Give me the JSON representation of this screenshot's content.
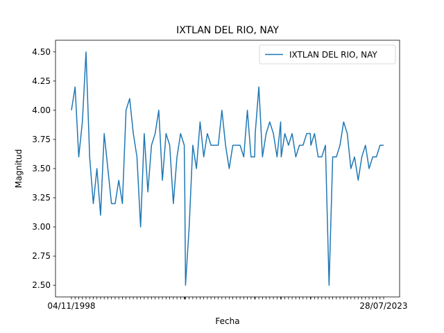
{
  "chart_data": {
    "type": "line",
    "title": "IXTLAN DEL RIO, NAY",
    "xlabel": "Fecha",
    "ylabel": "Magnitud",
    "legend": {
      "position": "top-right",
      "entries": [
        "IXTLAN DEL RIO, NAY"
      ]
    },
    "series": [
      {
        "name": "IXTLAN DEL RIO, NAY",
        "color": "#1f77b4",
        "values": [
          4.0,
          4.2,
          3.6,
          3.9,
          4.5,
          3.6,
          3.2,
          3.5,
          3.1,
          3.8,
          3.5,
          3.2,
          3.2,
          3.4,
          3.2,
          4.0,
          4.1,
          3.8,
          3.6,
          3.0,
          3.8,
          3.3,
          3.7,
          3.8,
          4.0,
          3.4,
          3.8,
          3.7,
          3.2,
          3.6,
          3.8,
          3.7,
          3.3,
          2.5,
          3.0,
          3.7,
          3.5,
          3.9,
          3.6,
          3.8,
          3.7,
          3.7,
          3.7,
          4.0,
          3.7,
          3.5,
          3.7,
          3.7,
          3.7,
          3.6,
          4.0,
          3.6,
          3.6,
          3.8,
          4.2,
          3.6,
          3.8,
          3.9,
          3.8,
          3.6,
          3.9,
          3.6,
          3.8,
          3.7,
          3.8,
          3.6,
          3.7,
          3.7,
          3.8,
          3.8,
          3.7,
          3.8,
          3.6,
          3.6,
          3.7,
          2.5,
          3.6,
          3.6,
          3.7,
          3.9,
          3.8,
          3.5,
          3.6,
          3.4,
          3.6,
          3.7,
          3.5,
          3.6,
          3.6,
          3.7,
          3.7
        ],
        "spacing": [
          1,
          1,
          1,
          1,
          1,
          1,
          1,
          1,
          1,
          1,
          1,
          1,
          1,
          1,
          1,
          1,
          1,
          1,
          1,
          1,
          1,
          1,
          1,
          1,
          1,
          1,
          1,
          1,
          1,
          1,
          1,
          1,
          0.15,
          0.2,
          1,
          1,
          1,
          1,
          1,
          1,
          1,
          1,
          1,
          1,
          1,
          1,
          1,
          1,
          1,
          1,
          1,
          1,
          1,
          0.15,
          1,
          1,
          1,
          1,
          1,
          1,
          1,
          0.15,
          1,
          1,
          1,
          1,
          1,
          1,
          1,
          1,
          0.15,
          1,
          1,
          1,
          1,
          1,
          1,
          1,
          1,
          1,
          1,
          1,
          1,
          1,
          1,
          1,
          1,
          1,
          1,
          1
        ]
      }
    ],
    "ylim": [
      2.4,
      4.6
    ],
    "yticks": [
      "2.50",
      "2.75",
      "3.00",
      "3.25",
      "3.50",
      "3.75",
      "4.00",
      "4.25",
      "4.50"
    ],
    "x_first_tick_label": "04/11/1998",
    "x_last_tick_label": "28/07/2023",
    "grid": false
  }
}
